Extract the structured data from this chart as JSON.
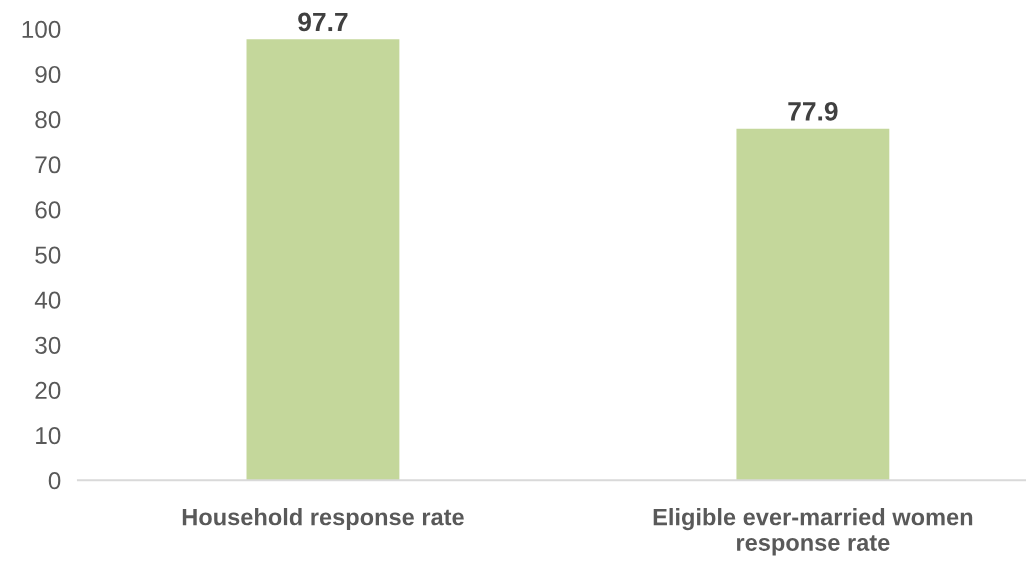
{
  "chart_data": {
    "type": "bar",
    "categories": [
      "Household response rate",
      "Eligible ever-married women response rate"
    ],
    "values": [
      97.7,
      77.9
    ],
    "color": "#c4d79b",
    "ylim": [
      0,
      100
    ],
    "yticks": [
      0,
      10,
      20,
      30,
      40,
      50,
      60,
      70,
      80,
      90,
      100
    ],
    "data_labels": true,
    "grid": false
  }
}
